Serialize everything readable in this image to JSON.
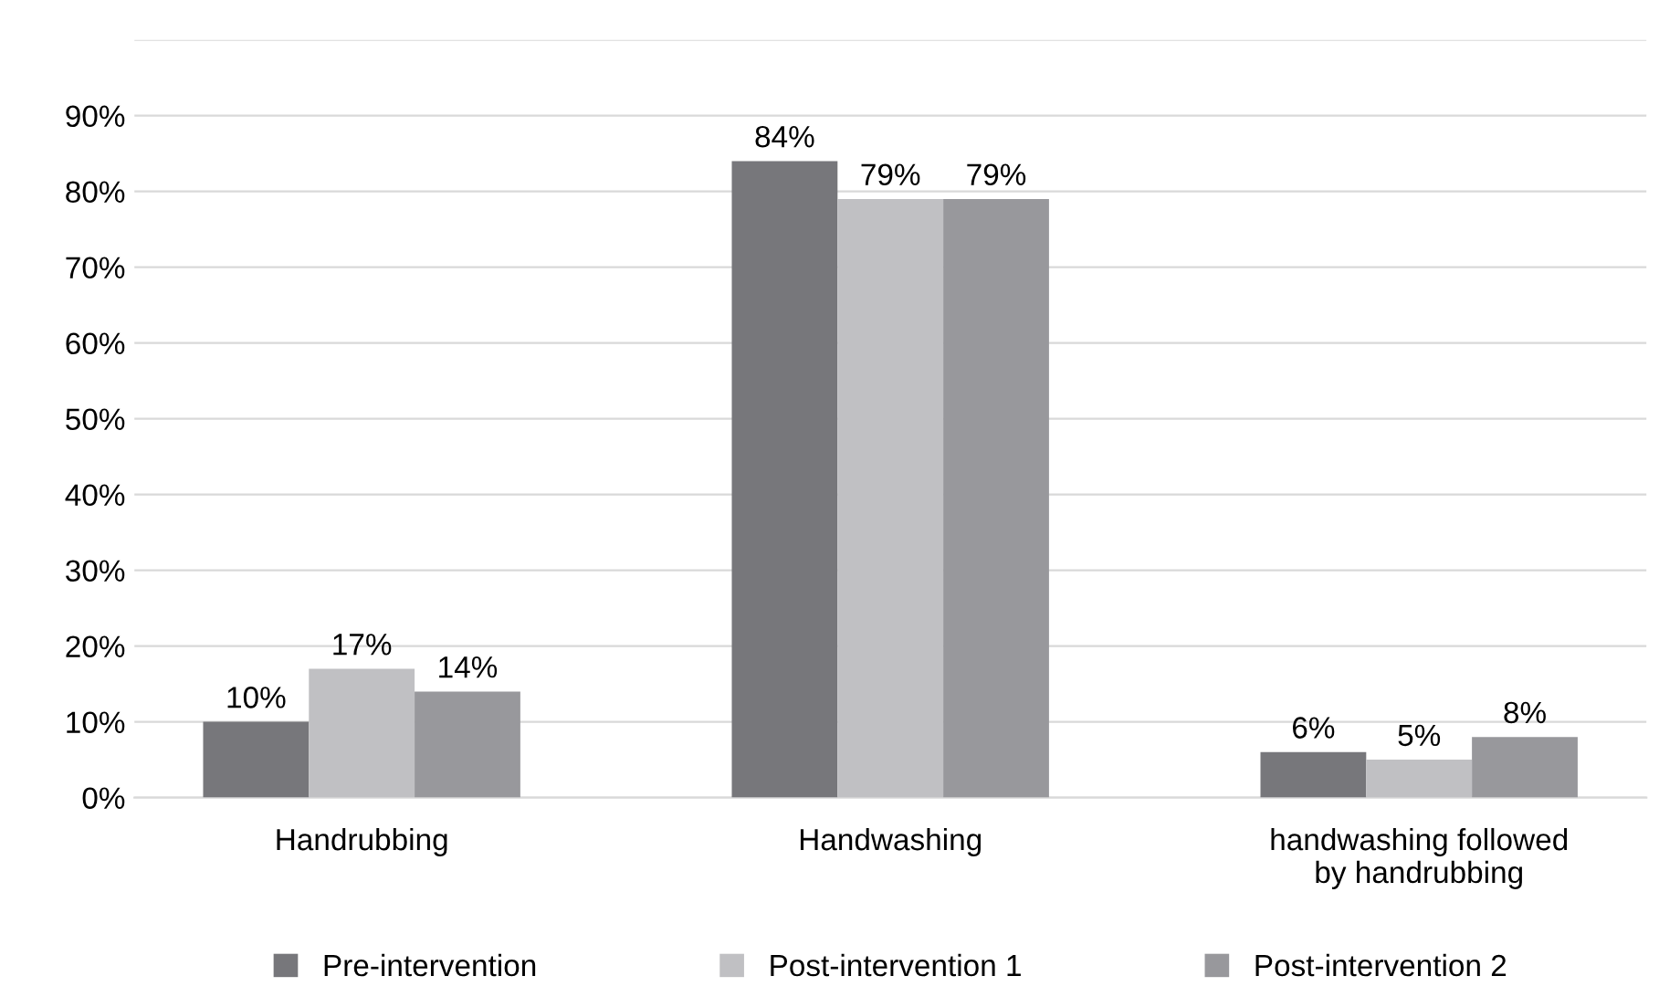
{
  "chart_data": {
    "type": "bar",
    "categories": [
      "Handrubbing",
      "Handwashing",
      "handwashing followed\nby handrubbing"
    ],
    "series": [
      {
        "name": "Pre-intervention",
        "color": "#77777b",
        "values": [
          10,
          84,
          6
        ],
        "value_labels": [
          "10%",
          "84%",
          "6%"
        ]
      },
      {
        "name": "Post-intervention 1",
        "color": "#c0c0c3",
        "values": [
          17,
          79,
          5
        ],
        "value_labels": [
          "17%",
          "79%",
          "5%"
        ]
      },
      {
        "name": "Post-intervention 2",
        "color": "#98989c",
        "values": [
          14,
          79,
          8
        ],
        "value_labels": [
          "14%",
          "79%",
          "8%"
        ]
      }
    ],
    "ylim": [
      0,
      100
    ],
    "yticks": [
      {
        "value": 0,
        "label": "0%"
      },
      {
        "value": 10,
        "label": "10%"
      },
      {
        "value": 20,
        "label": "20%"
      },
      {
        "value": 30,
        "label": "30%"
      },
      {
        "value": 40,
        "label": "40%"
      },
      {
        "value": 50,
        "label": "50%"
      },
      {
        "value": 60,
        "label": "60%"
      },
      {
        "value": 70,
        "label": "70%"
      },
      {
        "value": 80,
        "label": "80%"
      },
      {
        "value": 90,
        "label": "90%"
      },
      {
        "value": 100,
        "label": null
      }
    ],
    "grid": "y",
    "legend": "bottom"
  }
}
